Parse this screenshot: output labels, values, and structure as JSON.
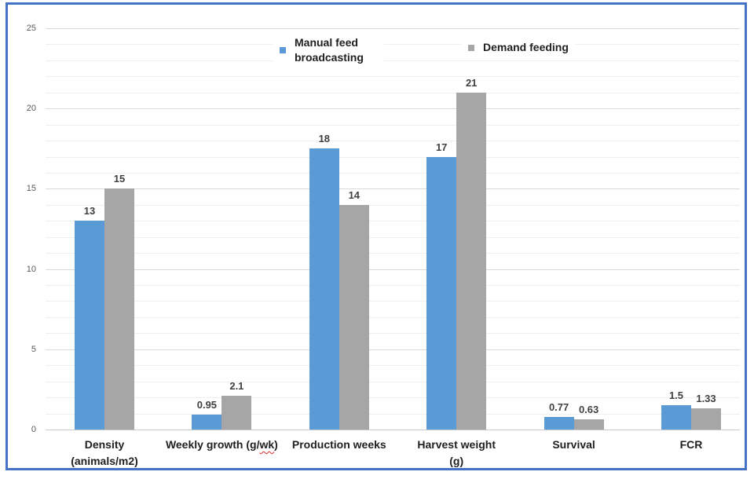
{
  "figure": {
    "border_color": "#4472C4",
    "background": "#ffffff"
  },
  "chart_data": {
    "type": "bar",
    "title": "",
    "xlabel": "",
    "ylabel": "",
    "categories": [
      "Density (animals/m2)",
      "Weekly growth (g/wk)",
      "Production weeks",
      "Harvest weight (g)",
      "Survival",
      "FCR"
    ],
    "category_display": [
      {
        "lines": [
          "Density",
          "(animals/m2)"
        ]
      },
      {
        "lines": [
          "Weekly growth (g/wk)"
        ],
        "spellcheck_underline": "wk"
      },
      {
        "lines": [
          "Production weeks"
        ]
      },
      {
        "lines": [
          "Harvest weight",
          "(g)"
        ]
      },
      {
        "lines": [
          "Survival"
        ]
      },
      {
        "lines": [
          "FCR"
        ]
      }
    ],
    "series": [
      {
        "name": "Manual feed broadcasting",
        "color": "#5B9BD5",
        "values": [
          13,
          0.95,
          17.5,
          17,
          0.77,
          1.5
        ],
        "data_labels": [
          "13",
          "0.95",
          "18",
          "17",
          "0.77",
          "1.5"
        ]
      },
      {
        "name": "Demand feeding",
        "color": "#A6A6A6",
        "values": [
          15,
          2.1,
          14,
          21,
          0.63,
          1.33
        ],
        "data_labels": [
          "15",
          "2.1",
          "14",
          "21",
          "0.63",
          "1.33"
        ]
      }
    ],
    "ylim": [
      0,
      25
    ],
    "y_ticks": [
      0,
      5,
      10,
      15,
      20,
      25
    ],
    "y_minor_unit": 1,
    "grid": true,
    "legend_position": "top-inside",
    "colors": {
      "axis_label": "#595959",
      "gridline_major": "#d9d9d9",
      "gridline_minor": "#efefef",
      "baseline": "#c8c8c8",
      "value_label": "#404040",
      "category_label": "#1f1f1f"
    }
  }
}
